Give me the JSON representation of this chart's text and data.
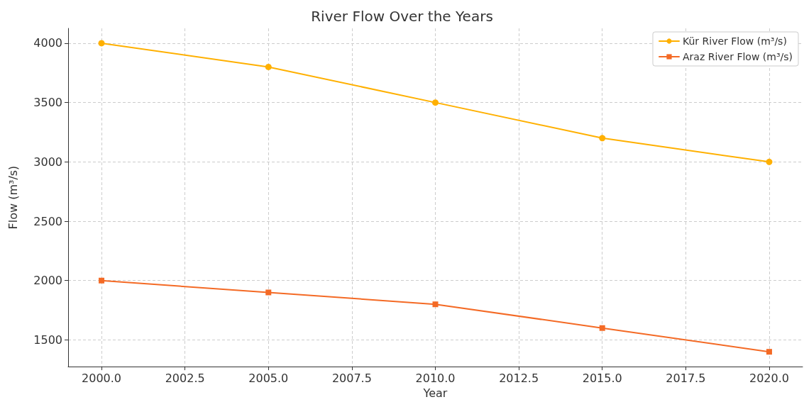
{
  "chart_data": {
    "type": "line",
    "title": "River Flow Over the Years",
    "xlabel": "Year",
    "ylabel": "Flow (m³/s)",
    "x": [
      2000,
      2005,
      2010,
      2015,
      2020
    ],
    "series": [
      {
        "name": "Kür River Flow (m³/s)",
        "color": "#ffb000",
        "marker": "circle",
        "values": [
          4000,
          3800,
          3500,
          3200,
          3000
        ]
      },
      {
        "name": "Araz River Flow (m³/s)",
        "color": "#f46a25",
        "marker": "square",
        "values": [
          2000,
          1900,
          1800,
          1600,
          1400
        ]
      }
    ],
    "xlim": [
      1999,
      2021
    ],
    "xticks": [
      {
        "value": 2000,
        "label": "2000.0"
      },
      {
        "value": 2002.5,
        "label": "2002.5"
      },
      {
        "value": 2005,
        "label": "2005.0"
      },
      {
        "value": 2007.5,
        "label": "2007.5"
      },
      {
        "value": 2010,
        "label": "2010.0"
      },
      {
        "value": 2012.5,
        "label": "2012.5"
      },
      {
        "value": 2015,
        "label": "2015.0"
      },
      {
        "value": 2017.5,
        "label": "2017.5"
      },
      {
        "value": 2020,
        "label": "2020.0"
      }
    ],
    "ylim": [
      1275,
      4125
    ],
    "yticks": [
      1500,
      2000,
      2500,
      3000,
      3500,
      4000
    ],
    "grid": true,
    "legend": "top right",
    "line_style": "solid"
  }
}
